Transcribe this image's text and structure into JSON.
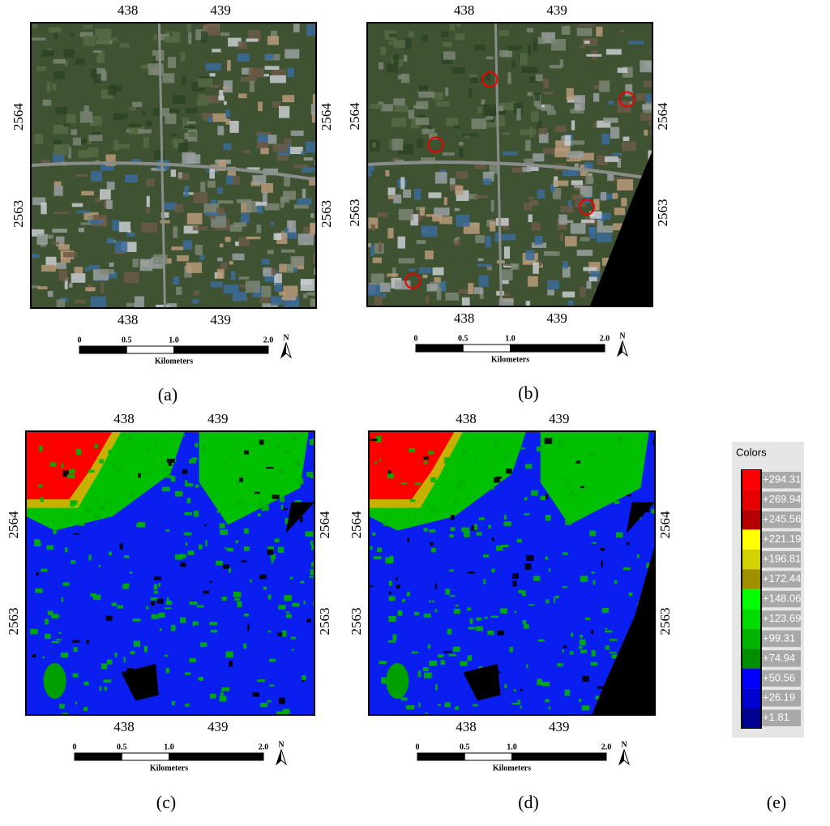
{
  "panels": [
    {
      "caption": "(a)",
      "top_ticks": [
        "438",
        "439"
      ],
      "bottom_ticks": [
        "438",
        "439"
      ],
      "left_ticks": [
        "2564",
        "2563"
      ],
      "right_ticks": [
        "2564",
        "2563"
      ],
      "scale_bar": {
        "labels": [
          "0",
          "0.5",
          "1.0",
          "2.0"
        ],
        "unit": "Kilometers",
        "north": "N"
      }
    },
    {
      "caption": "(b)",
      "top_ticks": [
        "438",
        "439"
      ],
      "bottom_ticks": [
        "438",
        "439"
      ],
      "left_ticks": [
        "2564",
        "2563"
      ],
      "right_ticks": [
        "2564",
        "2563"
      ],
      "scale_bar": {
        "labels": [
          "0",
          "0.5",
          "1.0",
          "2.0"
        ],
        "unit": "Kilometers",
        "north": "N"
      }
    },
    {
      "caption": "(c)",
      "top_ticks": [
        "438",
        "439"
      ],
      "bottom_ticks": [
        "438",
        "439"
      ],
      "left_ticks": [
        "2564",
        "2563"
      ],
      "right_ticks": [
        "2564",
        "2563"
      ],
      "scale_bar": {
        "labels": [
          "0",
          "0.5",
          "1.0",
          "2.0"
        ],
        "unit": "Kilometers",
        "north": "N"
      }
    },
    {
      "caption": "(d)",
      "top_ticks": [
        "438",
        "439"
      ],
      "bottom_ticks": [
        "438",
        "439"
      ],
      "left_ticks": [
        "2564",
        "2563"
      ],
      "right_ticks": [
        "2564",
        "2563"
      ],
      "scale_bar": {
        "labels": [
          "0",
          "0.5",
          "1.0",
          "2.0"
        ],
        "unit": "Kilometers",
        "north": "N"
      }
    }
  ],
  "legend": {
    "caption": "(e)",
    "title": "Colors",
    "entries": [
      {
        "label": "+294.31",
        "color": "#ff0000"
      },
      {
        "label": "+269.94",
        "color": "#e80000"
      },
      {
        "label": "+245.56",
        "color": "#b40000"
      },
      {
        "label": "+221.19",
        "color": "#ffff00"
      },
      {
        "label": "+196.81",
        "color": "#d2d200"
      },
      {
        "label": "+172.44",
        "color": "#a09000"
      },
      {
        "label": "+148.06",
        "color": "#00ff00"
      },
      {
        "label": "+123.69",
        "color": "#00dc00"
      },
      {
        "label": "+99.31",
        "color": "#00b400"
      },
      {
        "label": "+74.94",
        "color": "#009000"
      },
      {
        "label": "+50.56",
        "color": "#0000ff"
      },
      {
        "label": "+26.19",
        "color": "#0000d0"
      },
      {
        "label": "+1.81",
        "color": "#000090"
      }
    ]
  }
}
